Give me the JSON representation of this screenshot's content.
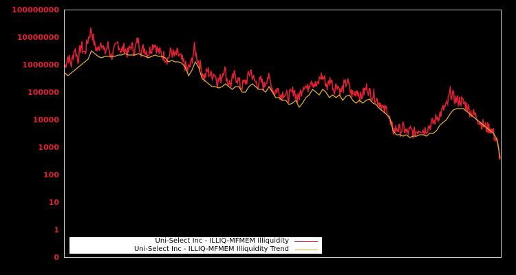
{
  "chart_data": {
    "type": "line",
    "title": "",
    "xlabel": "",
    "ylabel": "",
    "yscale": "log",
    "yticks": [
      "100000000",
      "10000000",
      "1000000",
      "100000",
      "10000",
      "1000",
      "100",
      "10",
      "1",
      "0"
    ],
    "ylim": [
      0,
      100000000
    ],
    "grid": false,
    "legend_position": "lower-left",
    "background": "#000000",
    "series": [
      {
        "name": "Uni-Select Inc - ILLIQ-MFMEM Illiquidity",
        "color": "#dd2233",
        "approx_log10_values": [
          5.9,
          6.3,
          6.0,
          6.6,
          6.2,
          6.7,
          6.4,
          6.9,
          7.3,
          6.7,
          6.5,
          6.9,
          6.4,
          6.7,
          6.3,
          6.5,
          6.8,
          6.5,
          6.6,
          6.4,
          6.7,
          6.5,
          6.9,
          6.5,
          6.6,
          6.4,
          6.6,
          6.8,
          6.5,
          6.4,
          6.3,
          6.2,
          6.5,
          6.3,
          6.4,
          6.2,
          6.0,
          5.8,
          6.0,
          6.6,
          6.2,
          5.9,
          5.5,
          5.8,
          5.6,
          5.7,
          5.4,
          5.5,
          5.9,
          5.4,
          5.3,
          5.6,
          5.5,
          5.2,
          5.3,
          5.5,
          5.8,
          5.4,
          5.3,
          5.4,
          5.2,
          5.6,
          5.3,
          5.0,
          5.1,
          4.9,
          5.0,
          4.8,
          4.9,
          5.1,
          4.7,
          5.0,
          5.3,
          5.1,
          5.5,
          5.3,
          5.2,
          5.6,
          5.5,
          5.2,
          5.5,
          5.1,
          5.3,
          5.0,
          5.2,
          5.4,
          5.0,
          4.9,
          5.1,
          4.8,
          5.0,
          5.2,
          4.9,
          4.9,
          4.7,
          4.6,
          4.3,
          4.4,
          3.8,
          3.6,
          3.7,
          3.6,
          3.7,
          3.5,
          3.6,
          3.5,
          3.6,
          3.7,
          3.6,
          3.7,
          3.8,
          3.9,
          4.1,
          4.2,
          4.4,
          4.5,
          5.0,
          4.8,
          4.7,
          4.7,
          4.6,
          4.5,
          4.3,
          4.2,
          4.1,
          3.9,
          3.8,
          3.7,
          3.7,
          3.5,
          3.2,
          2.6
        ],
        "approx_values_note": "values in log10 units, evenly spaced across x-axis"
      },
      {
        "name": "Uni-Select Inc - ILLIQ-MFMEM Illiquidity Trend",
        "color": "#ddaa33",
        "approx_log10_values": [
          5.7,
          5.6,
          5.7,
          5.8,
          5.9,
          6.0,
          6.1,
          6.2,
          6.5,
          6.4,
          6.3,
          6.25,
          6.3,
          6.3,
          6.3,
          6.3,
          6.35,
          6.35,
          6.4,
          6.35,
          6.35,
          6.35,
          6.4,
          6.35,
          6.3,
          6.25,
          6.3,
          6.35,
          6.3,
          6.3,
          6.25,
          6.1,
          6.15,
          6.1,
          6.1,
          6.05,
          5.9,
          5.6,
          5.8,
          6.1,
          5.9,
          5.5,
          5.4,
          5.3,
          5.2,
          5.2,
          5.15,
          5.2,
          5.3,
          5.2,
          5.1,
          5.2,
          5.2,
          5.0,
          5.0,
          5.2,
          5.3,
          5.2,
          5.1,
          5.1,
          5.0,
          5.2,
          5.0,
          4.8,
          4.8,
          4.7,
          4.7,
          4.55,
          4.6,
          4.7,
          4.45,
          4.6,
          4.8,
          4.9,
          5.1,
          5.0,
          4.9,
          5.1,
          5.0,
          4.8,
          4.9,
          4.8,
          4.9,
          4.7,
          4.85,
          4.9,
          4.7,
          4.6,
          4.7,
          4.6,
          4.7,
          4.75,
          4.6,
          4.55,
          4.4,
          4.3,
          4.2,
          4.1,
          3.6,
          3.45,
          3.45,
          3.4,
          3.45,
          3.35,
          3.4,
          3.4,
          3.45,
          3.45,
          3.4,
          3.5,
          3.5,
          3.6,
          3.8,
          3.9,
          4.0,
          4.2,
          4.35,
          4.4,
          4.4,
          4.4,
          4.3,
          4.2,
          4.1,
          4.0,
          3.9,
          3.8,
          3.7,
          3.6,
          3.5,
          3.3,
          2.6
        ]
      }
    ]
  },
  "axis": {
    "y_labels": [
      "100000000",
      "10000000",
      "1000000",
      "100000",
      "10000",
      "1000",
      "100",
      "10",
      "1",
      "0"
    ]
  },
  "legend": {
    "items": [
      {
        "label": "Uni-Select Inc - ILLIQ-MFMEM Illiquidity",
        "color": "#dd2233"
      },
      {
        "label": "Uni-Select Inc - ILLIQ-MFMEM Illiquidity Trend",
        "color": "#ddaa33"
      }
    ]
  },
  "colors": {
    "background": "#000000",
    "frame": "#cccccc",
    "tick_label": "#dd2233",
    "legend_bg": "#ffffff"
  }
}
